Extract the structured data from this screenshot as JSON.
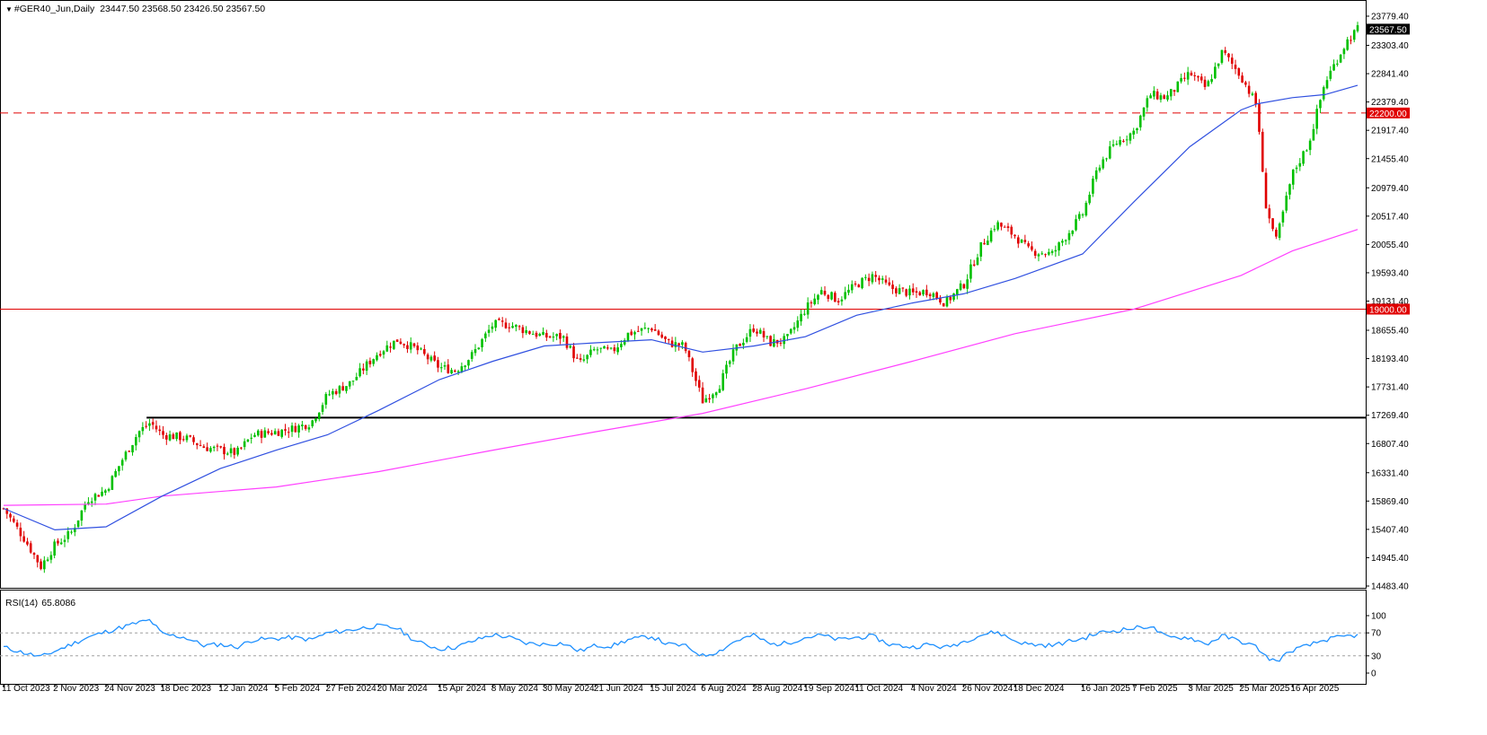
{
  "header": {
    "symbol_timeframe": "#GER40_Jun,Daily",
    "ohlc": "23447.50 23568.50 23426.50 23567.50"
  },
  "rsi_header": {
    "label": "RSI(14)",
    "value": "65.8086"
  },
  "colors": {
    "bull": "#00c000",
    "bear": "#e00000",
    "ma_fast": "#3050e0",
    "ma_slow": "#ff40ff",
    "level_line": "#e00000",
    "support_line": "#000000",
    "rsi_line": "#1e90ff"
  },
  "chart_data": {
    "type": "candlestick",
    "price_axis": {
      "range": [
        14483.4,
        23779.4
      ],
      "ticks": [
        "23779.40",
        "23303.40",
        "22841.40",
        "22379.40",
        "21917.40",
        "21455.40",
        "20979.40",
        "20517.40",
        "20055.40",
        "19593.40",
        "19131.40",
        "18655.40",
        "18193.40",
        "17731.40",
        "17269.40",
        "16807.40",
        "16331.40",
        "15869.40",
        "15407.40",
        "14945.40",
        "14483.40"
      ]
    },
    "date_axis": {
      "ticks": [
        "11 Oct 2023",
        "2 Nov 2023",
        "24 Nov 2023",
        "18 Dec 2023",
        "12 Jan 2024",
        "5 Feb 2024",
        "27 Feb 2024",
        "20 Mar 2024",
        "15 Apr 2024",
        "8 May 2024",
        "30 May 2024",
        "21 Jun 2024",
        "15 Jul 2024",
        "6 Aug 2024",
        "28 Aug 2024",
        "19 Sep 2024",
        "11 Oct 2024",
        "4 Nov 2024",
        "26 Nov 2024",
        "18 Dec 2024",
        "16 Jan 2025",
        "7 Feb 2025",
        "3 Mar 2025",
        "25 Mar 2025",
        "16 Apr 2025"
      ]
    },
    "current_price_label": "23567.50",
    "levels": [
      {
        "price": 22200.0,
        "label": "22200.00",
        "style": "dashed"
      },
      {
        "price": 19000.0,
        "label": "19000.00",
        "style": "solid"
      }
    ],
    "support_segment": {
      "price": 17230,
      "from": "24 Nov 2023"
    },
    "close_path": [
      [
        "11 Oct 2023",
        15750
      ],
      [
        "20 Oct 2023",
        15250
      ],
      [
        "27 Oct 2023",
        14800
      ],
      [
        "2 Nov 2023",
        15150
      ],
      [
        "9 Nov 2023",
        15350
      ],
      [
        "16 Nov 2023",
        15900
      ],
      [
        "24 Nov 2023",
        16050
      ],
      [
        "1 Dec 2023",
        16550
      ],
      [
        "8 Dec 2023",
        17000
      ],
      [
        "13 Dec 2023",
        17150
      ],
      [
        "18 Dec 2023",
        16950
      ],
      [
        "28 Dec 2023",
        16900
      ],
      [
        "5 Jan 2024",
        16750
      ],
      [
        "12 Jan 2024",
        16700
      ],
      [
        "19 Jan 2024",
        16650
      ],
      [
        "26 Jan 2024",
        16950
      ],
      [
        "5 Feb 2024",
        17000
      ],
      [
        "12 Feb 2024",
        17050
      ],
      [
        "20 Feb 2024",
        17150
      ],
      [
        "27 Feb 2024",
        17600
      ],
      [
        "8 Mar 2024",
        17800
      ],
      [
        "15 Mar 2024",
        18100
      ],
      [
        "20 Mar 2024",
        18300
      ],
      [
        "28 Mar 2024",
        18500
      ],
      [
        "5 Apr 2024",
        18350
      ],
      [
        "15 Apr 2024",
        18050
      ],
      [
        "22 Apr 2024",
        18000
      ],
      [
        "29 Apr 2024",
        18250
      ],
      [
        "8 May 2024",
        18750
      ],
      [
        "15 May 2024",
        18750
      ],
      [
        "22 May 2024",
        18650
      ],
      [
        "30 May 2024",
        18550
      ],
      [
        "7 Jun 2024",
        18550
      ],
      [
        "14 Jun 2024",
        18100
      ],
      [
        "21 Jun 2024",
        18350
      ],
      [
        "28 Jun 2024",
        18300
      ],
      [
        "5 Jul 2024",
        18600
      ],
      [
        "15 Jul 2024",
        18700
      ],
      [
        "22 Jul 2024",
        18450
      ],
      [
        "29 Jul 2024",
        18400
      ],
      [
        "6 Aug 2024",
        17500
      ],
      [
        "13 Aug 2024",
        17750
      ],
      [
        "20 Aug 2024",
        18350
      ],
      [
        "28 Aug 2024",
        18700
      ],
      [
        "4 Sep 2024",
        18450
      ],
      [
        "11 Sep 2024",
        18500
      ],
      [
        "19 Sep 2024",
        19000
      ],
      [
        "26 Sep 2024",
        19300
      ],
      [
        "3 Oct 2024",
        19150
      ],
      [
        "11 Oct 2024",
        19400
      ],
      [
        "18 Oct 2024",
        19550
      ],
      [
        "25 Oct 2024",
        19350
      ],
      [
        "4 Nov 2024",
        19250
      ],
      [
        "11 Nov 2024",
        19300
      ],
      [
        "18 Nov 2024",
        19100
      ],
      [
        "26 Nov 2024",
        19400
      ],
      [
        "3 Dec 2024",
        20000
      ],
      [
        "10 Dec 2024",
        20400
      ],
      [
        "18 Dec 2024",
        20200
      ],
      [
        "24 Dec 2024",
        19950
      ],
      [
        "3 Jan 2025",
        19900
      ],
      [
        "10 Jan 2025",
        20250
      ],
      [
        "16 Jan 2025",
        20550
      ],
      [
        "23 Jan 2025",
        21350
      ],
      [
        "30 Jan 2025",
        21700
      ],
      [
        "7 Feb 2025",
        21900
      ],
      [
        "14 Feb 2025",
        22500
      ],
      [
        "21 Feb 2025",
        22450
      ],
      [
        "3 Mar 2025",
        22850
      ],
      [
        "10 Mar 2025",
        22600
      ],
      [
        "17 Mar 2025",
        23200
      ],
      [
        "25 Mar 2025",
        22800
      ],
      [
        "1 Apr 2025",
        22300
      ],
      [
        "4 Apr 2025",
        20800
      ],
      [
        "9 Apr 2025",
        20100
      ],
      [
        "16 Apr 2025",
        21200
      ],
      [
        "23 Apr 2025",
        21700
      ],
      [
        "30 Apr 2025",
        22700
      ],
      [
        "9 May 2025",
        23350
      ],
      [
        "14 May 2025",
        23567.5
      ]
    ],
    "ma_fast_path": [
      [
        "11 Oct 2023",
        15750
      ],
      [
        "2 Nov 2023",
        15400
      ],
      [
        "24 Nov 2023",
        15450
      ],
      [
        "18 Dec 2023",
        15950
      ],
      [
        "12 Jan 2024",
        16400
      ],
      [
        "5 Feb 2024",
        16700
      ],
      [
        "27 Feb 2024",
        16950
      ],
      [
        "20 Mar 2024",
        17350
      ],
      [
        "15 Apr 2024",
        17850
      ],
      [
        "8 May 2024",
        18150
      ],
      [
        "30 May 2024",
        18400
      ],
      [
        "21 Jun 2024",
        18450
      ],
      [
        "15 Jul 2024",
        18500
      ],
      [
        "6 Aug 2024",
        18300
      ],
      [
        "28 Aug 2024",
        18400
      ],
      [
        "19 Sep 2024",
        18550
      ],
      [
        "11 Oct 2024",
        18900
      ],
      [
        "4 Nov 2024",
        19100
      ],
      [
        "26 Nov 2024",
        19250
      ],
      [
        "18 Dec 2024",
        19500
      ],
      [
        "16 Jan 2025",
        19900
      ],
      [
        "7 Feb 2025",
        20750
      ],
      [
        "3 Mar 2025",
        21650
      ],
      [
        "25 Mar 2025",
        22250
      ],
      [
        "1 Apr 2025",
        22350
      ],
      [
        "16 Apr 2025",
        22450
      ],
      [
        "30 Apr 2025",
        22500
      ],
      [
        "14 May 2025",
        22650
      ]
    ],
    "ma_slow_path": [
      [
        "11 Oct 2023",
        15800
      ],
      [
        "24 Nov 2023",
        15820
      ],
      [
        "18 Dec 2023",
        15950
      ],
      [
        "5 Feb 2024",
        16100
      ],
      [
        "20 Mar 2024",
        16350
      ],
      [
        "8 May 2024",
        16700
      ],
      [
        "21 Jun 2024",
        17000
      ],
      [
        "6 Aug 2024",
        17300
      ],
      [
        "19 Sep 2024",
        17700
      ],
      [
        "4 Nov 2024",
        18150
      ],
      [
        "18 Dec 2024",
        18600
      ],
      [
        "7 Feb 2025",
        19000
      ],
      [
        "25 Mar 2025",
        19550
      ],
      [
        "16 Apr 2025",
        19950
      ],
      [
        "14 May 2025",
        20300
      ]
    ],
    "rsi": {
      "axis_ticks": [
        "100",
        "70",
        "30",
        "0"
      ],
      "levels": [
        70,
        30
      ],
      "path": [
        [
          "11 Oct 2023",
          45
        ],
        [
          "20 Oct 2023",
          35
        ],
        [
          "27 Oct 2023",
          28
        ],
        [
          "2 Nov 2023",
          38
        ],
        [
          "9 Nov 2023",
          50
        ],
        [
          "16 Nov 2023",
          62
        ],
        [
          "24 Nov 2023",
          72
        ],
        [
          "1 Dec 2023",
          80
        ],
        [
          "8 Dec 2023",
          88
        ],
        [
          "13 Dec 2023",
          92
        ],
        [
          "18 Dec 2023",
          68
        ],
        [
          "28 Dec 2023",
          62
        ],
        [
          "5 Jan 2024",
          48
        ],
        [
          "12 Jan 2024",
          50
        ],
        [
          "19 Jan 2024",
          45
        ],
        [
          "26 Jan 2024",
          58
        ],
        [
          "5 Feb 2024",
          60
        ],
        [
          "12 Feb 2024",
          62
        ],
        [
          "20 Feb 2024",
          58
        ],
        [
          "27 Feb 2024",
          70
        ],
        [
          "8 Mar 2024",
          75
        ],
        [
          "15 Mar 2024",
          80
        ],
        [
          "20 Mar 2024",
          82
        ],
        [
          "28 Mar 2024",
          78
        ],
        [
          "5 Apr 2024",
          55
        ],
        [
          "15 Apr 2024",
          42
        ],
        [
          "22 Apr 2024",
          45
        ],
        [
          "29 Apr 2024",
          55
        ],
        [
          "8 May 2024",
          67
        ],
        [
          "15 May 2024",
          62
        ],
        [
          "22 May 2024",
          52
        ],
        [
          "30 May 2024",
          50
        ],
        [
          "7 Jun 2024",
          52
        ],
        [
          "14 Jun 2024",
          38
        ],
        [
          "21 Jun 2024",
          48
        ],
        [
          "28 Jun 2024",
          47
        ],
        [
          "5 Jul 2024",
          58
        ],
        [
          "15 Jul 2024",
          64
        ],
        [
          "22 Jul 2024",
          50
        ],
        [
          "29 Jul 2024",
          48
        ],
        [
          "6 Aug 2024",
          30
        ],
        [
          "13 Aug 2024",
          38
        ],
        [
          "20 Aug 2024",
          56
        ],
        [
          "28 Aug 2024",
          66
        ],
        [
          "4 Sep 2024",
          50
        ],
        [
          "11 Sep 2024",
          52
        ],
        [
          "19 Sep 2024",
          62
        ],
        [
          "26 Sep 2024",
          66
        ],
        [
          "3 Oct 2024",
          58
        ],
        [
          "11 Oct 2024",
          62
        ],
        [
          "18 Oct 2024",
          64
        ],
        [
          "25 Oct 2024",
          50
        ],
        [
          "4 Nov 2024",
          45
        ],
        [
          "11 Nov 2024",
          50
        ],
        [
          "18 Nov 2024",
          44
        ],
        [
          "26 Nov 2024",
          55
        ],
        [
          "3 Dec 2024",
          66
        ],
        [
          "10 Dec 2024",
          72
        ],
        [
          "18 Dec 2024",
          56
        ],
        [
          "24 Dec 2024",
          50
        ],
        [
          "3 Jan 2025",
          48
        ],
        [
          "10 Jan 2025",
          55
        ],
        [
          "16 Jan 2025",
          60
        ],
        [
          "23 Jan 2025",
          70
        ],
        [
          "30 Jan 2025",
          74
        ],
        [
          "7 Feb 2025",
          78
        ],
        [
          "14 Feb 2025",
          82
        ],
        [
          "21 Feb 2025",
          62
        ],
        [
          "3 Mar 2025",
          62
        ],
        [
          "10 Mar 2025",
          50
        ],
        [
          "17 Mar 2025",
          65
        ],
        [
          "25 Mar 2025",
          55
        ],
        [
          "1 Apr 2025",
          45
        ],
        [
          "4 Apr 2025",
          30
        ],
        [
          "9 Apr 2025",
          20
        ],
        [
          "16 Apr 2025",
          40
        ],
        [
          "23 Apr 2025",
          48
        ],
        [
          "30 Apr 2025",
          58
        ],
        [
          "9 May 2025",
          64
        ],
        [
          "14 May 2025",
          65.8
        ]
      ]
    }
  }
}
